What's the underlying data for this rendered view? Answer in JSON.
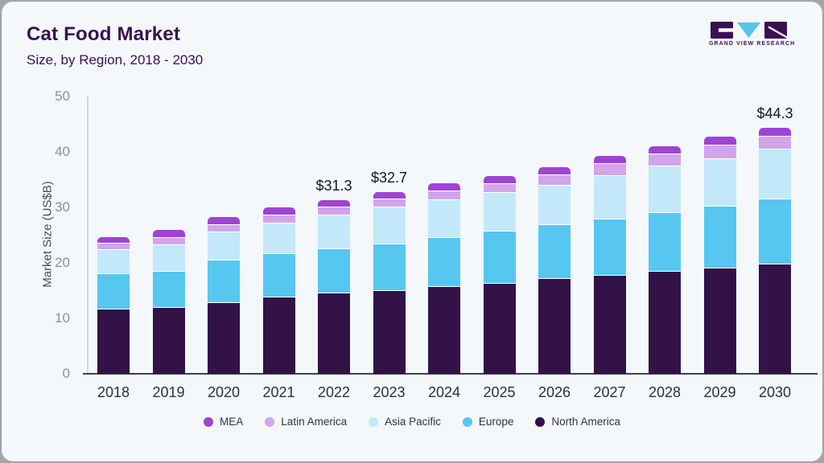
{
  "header": {
    "title": "Cat Food Market",
    "subtitle": "Size, by Region, 2018 - 2030"
  },
  "logo": {
    "brand": "GRAND VIEW RESEARCH",
    "colors": {
      "dark": "#3b1053",
      "blue": "#55c6ec"
    }
  },
  "chart_data": {
    "type": "bar",
    "stacked": true,
    "title": "Cat Food Market Size, by Region, 2018 - 2030",
    "ylabel": "Market Size (US$B)",
    "xlabel": "",
    "ylim": [
      0,
      50
    ],
    "yticks": [
      0,
      10,
      20,
      30,
      40,
      50
    ],
    "grid": false,
    "legend_position": "bottom",
    "categories": [
      "2018",
      "2019",
      "2020",
      "2021",
      "2022",
      "2023",
      "2024",
      "2025",
      "2026",
      "2027",
      "2028",
      "2029",
      "2030"
    ],
    "series": [
      {
        "name": "North America",
        "color": "#321247",
        "values": [
          11.7,
          12.0,
          12.9,
          13.9,
          14.6,
          15.1,
          15.8,
          16.4,
          17.2,
          17.8,
          18.6,
          19.2,
          19.9
        ]
      },
      {
        "name": "Europe",
        "color": "#56c7f1",
        "values": [
          6.4,
          6.6,
          7.7,
          7.8,
          8.0,
          8.4,
          8.9,
          9.4,
          9.7,
          10.2,
          10.6,
          11.1,
          11.7
        ]
      },
      {
        "name": "Asia Pacific",
        "color": "#c2e8f9",
        "values": [
          4.4,
          4.8,
          5.1,
          5.6,
          6.1,
          6.6,
          6.8,
          7.0,
          7.2,
          7.8,
          8.4,
          8.6,
          9.0
        ]
      },
      {
        "name": "Latin America",
        "color": "#d0a5ea",
        "values": [
          1.2,
          1.3,
          1.3,
          1.4,
          1.4,
          1.5,
          1.5,
          1.5,
          1.8,
          2.2,
          2.1,
          2.4,
          2.3
        ]
      },
      {
        "name": "MEA",
        "color": "#9e44d4",
        "values": [
          1.0,
          1.2,
          1.2,
          1.3,
          1.2,
          1.1,
          1.3,
          1.4,
          1.3,
          1.3,
          1.3,
          1.4,
          1.4
        ]
      }
    ],
    "totals": [
      24.7,
      25.9,
      28.2,
      30.0,
      31.3,
      32.7,
      34.3,
      35.7,
      37.2,
      39.3,
      41.0,
      42.7,
      44.3
    ],
    "annotations": [
      {
        "category": "2022",
        "label": "$31.3"
      },
      {
        "category": "2023",
        "label": "$32.7"
      },
      {
        "category": "2030",
        "label": "$44.3"
      }
    ],
    "legend": [
      "MEA",
      "Latin America",
      "Asia Pacific",
      "Europe",
      "North America"
    ]
  }
}
